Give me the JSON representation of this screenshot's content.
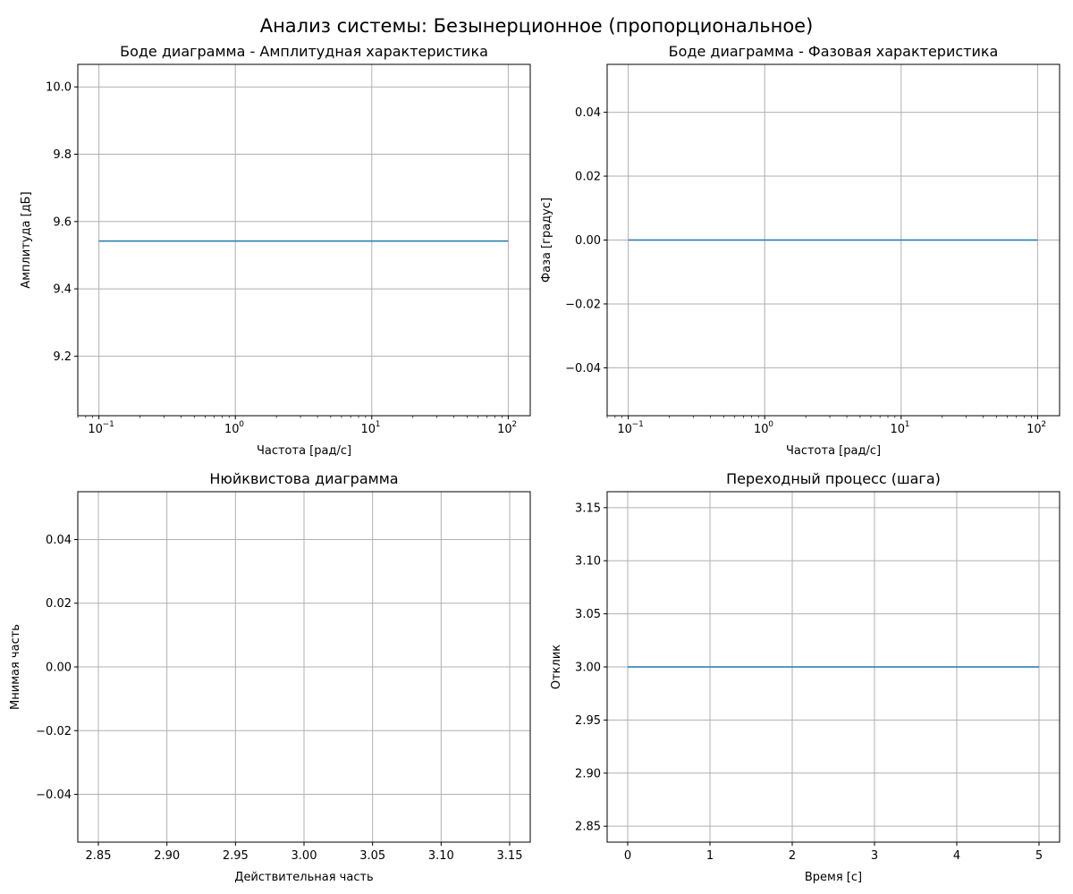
{
  "figure": {
    "title": "Анализ системы: Безынерционное (пропорциональное)"
  },
  "colors": {
    "series": "#1f77b4",
    "grid": "#b0b0b0"
  },
  "chart_data": [
    {
      "id": "bode-mag",
      "type": "line",
      "title": "Боде диаграмма - Амплитудная характеристика",
      "xlabel": "Частота [рад/с]",
      "ylabel": "Амплитуда [дБ]",
      "xscale": "log",
      "xlim": [
        0.07,
        145
      ],
      "ylim": [
        9.023,
        10.067
      ],
      "grid": true,
      "xticks": [
        {
          "value": 0.1,
          "label": "10",
          "exp": "−1"
        },
        {
          "value": 1,
          "label": "10",
          "exp": "0"
        },
        {
          "value": 10,
          "label": "10",
          "exp": "1"
        },
        {
          "value": 100,
          "label": "10",
          "exp": "2"
        }
      ],
      "yticks": [
        {
          "value": 9.2,
          "label": "9.2"
        },
        {
          "value": 9.4,
          "label": "9.4"
        },
        {
          "value": 9.6,
          "label": "9.6"
        },
        {
          "value": 9.8,
          "label": "9.8"
        },
        {
          "value": 10.0,
          "label": "10.0"
        }
      ],
      "series": [
        {
          "x": [
            0.1,
            100
          ],
          "y": [
            9.542,
            9.542
          ]
        }
      ]
    },
    {
      "id": "bode-phase",
      "type": "line",
      "title": "Боде диаграмма - Фазовая характеристика",
      "xlabel": "Частота [рад/с]",
      "ylabel": "Фаза [градус]",
      "xscale": "log",
      "xlim": [
        0.07,
        145
      ],
      "ylim": [
        -0.055,
        0.055
      ],
      "grid": true,
      "xticks": [
        {
          "value": 0.1,
          "label": "10",
          "exp": "−1"
        },
        {
          "value": 1,
          "label": "10",
          "exp": "0"
        },
        {
          "value": 10,
          "label": "10",
          "exp": "1"
        },
        {
          "value": 100,
          "label": "10",
          "exp": "2"
        }
      ],
      "yticks": [
        {
          "value": -0.04,
          "label": "−0.04"
        },
        {
          "value": -0.02,
          "label": "−0.02"
        },
        {
          "value": 0.0,
          "label": "0.00"
        },
        {
          "value": 0.02,
          "label": "0.02"
        },
        {
          "value": 0.04,
          "label": "0.04"
        }
      ],
      "series": [
        {
          "x": [
            0.1,
            100
          ],
          "y": [
            0,
            0
          ]
        }
      ]
    },
    {
      "id": "nyquist",
      "type": "scatter",
      "title": "Нюйквистова диаграмма",
      "xlabel": "Действительная часть",
      "ylabel": "Мнимая часть",
      "xscale": "linear",
      "xlim": [
        2.835,
        3.165
      ],
      "ylim": [
        -0.055,
        0.055
      ],
      "grid": true,
      "xticks": [
        {
          "value": 2.85,
          "label": "2.85"
        },
        {
          "value": 2.9,
          "label": "2.90"
        },
        {
          "value": 2.95,
          "label": "2.95"
        },
        {
          "value": 3.0,
          "label": "3.00"
        },
        {
          "value": 3.05,
          "label": "3.05"
        },
        {
          "value": 3.1,
          "label": "3.10"
        },
        {
          "value": 3.15,
          "label": "3.15"
        }
      ],
      "yticks": [
        {
          "value": -0.04,
          "label": "−0.04"
        },
        {
          "value": -0.02,
          "label": "−0.02"
        },
        {
          "value": 0.0,
          "label": "0.00"
        },
        {
          "value": 0.02,
          "label": "0.02"
        },
        {
          "value": 0.04,
          "label": "0.04"
        }
      ],
      "series": []
    },
    {
      "id": "step",
      "type": "line",
      "title": "Переходный процесс (шага)",
      "xlabel": "Время [с]",
      "ylabel": "Отклик",
      "xscale": "linear",
      "xlim": [
        -0.25,
        5.25
      ],
      "ylim": [
        2.835,
        3.165
      ],
      "grid": true,
      "xticks": [
        {
          "value": 0,
          "label": "0"
        },
        {
          "value": 1,
          "label": "1"
        },
        {
          "value": 2,
          "label": "2"
        },
        {
          "value": 3,
          "label": "3"
        },
        {
          "value": 4,
          "label": "4"
        },
        {
          "value": 5,
          "label": "5"
        }
      ],
      "yticks": [
        {
          "value": 2.85,
          "label": "2.85"
        },
        {
          "value": 2.9,
          "label": "2.90"
        },
        {
          "value": 2.95,
          "label": "2.95"
        },
        {
          "value": 3.0,
          "label": "3.00"
        },
        {
          "value": 3.05,
          "label": "3.05"
        },
        {
          "value": 3.1,
          "label": "3.10"
        },
        {
          "value": 3.15,
          "label": "3.15"
        }
      ],
      "series": [
        {
          "x": [
            0,
            5
          ],
          "y": [
            3.0,
            3.0
          ]
        }
      ]
    }
  ]
}
